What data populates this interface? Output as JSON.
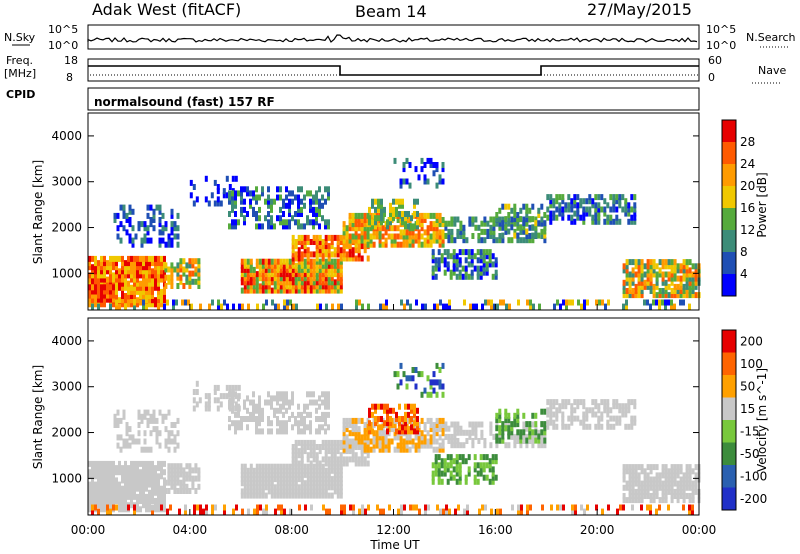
{
  "header": {
    "station": "Adak West (fitACF)",
    "beam": "Beam 14",
    "date": "27/May/2015"
  },
  "strip_labels": {
    "nsky": "N.Sky",
    "nsearch": "N.Search",
    "freq": "Freq.",
    "freq_unit": "[MHz]",
    "nave": "Nave",
    "cpid": "CPID",
    "cpid_value": "normalsound (fast) 157 RF",
    "count_top": "10^5",
    "count_bottom": "10^0",
    "freq_top": "18",
    "freq_bottom": "8",
    "nave_top": "60",
    "nave_bottom": "0"
  },
  "colors": {
    "power_scale": [
      "#0000ff",
      "#1f4fb4",
      "#3c8c78",
      "#55aa3c",
      "#f0c800",
      "#ff9b00",
      "#ff5a00",
      "#e60000"
    ],
    "velocity_scale": [
      "#2030c8",
      "#2a60b0",
      "#3c8c3c",
      "#78c83c",
      "#c8c8c8",
      "#ffa000",
      "#ff6400",
      "#e60000"
    ]
  },
  "chart_data": [
    {
      "type": "heatmap",
      "panel": "power",
      "ylabel": "Slant Range [km]",
      "ylim": [
        200,
        4500
      ],
      "yticks": [
        "1000",
        "2000",
        "3000",
        "4000"
      ],
      "xlim": [
        "00:00",
        "24:00"
      ],
      "colorbar": {
        "label": "Power [dB]",
        "ticks": [
          "4",
          "8",
          "12",
          "16",
          "20",
          "24",
          "28"
        ]
      }
    },
    {
      "type": "heatmap",
      "panel": "velocity",
      "ylabel": "Slant Range [km]",
      "ylim": [
        200,
        4500
      ],
      "yticks": [
        "1000",
        "2000",
        "3000",
        "4000"
      ],
      "xlim": [
        "00:00",
        "24:00"
      ],
      "xticks": [
        "00:00",
        "04:00",
        "08:00",
        "12:00",
        "16:00",
        "20:00",
        "00:00"
      ],
      "xlabel": "Time UT",
      "colorbar": {
        "label": "Velocity [m s^-1]",
        "ticks": [
          "200",
          "100",
          "50",
          "15",
          "-15",
          "-50",
          "-100",
          "-200"
        ]
      }
    }
  ]
}
